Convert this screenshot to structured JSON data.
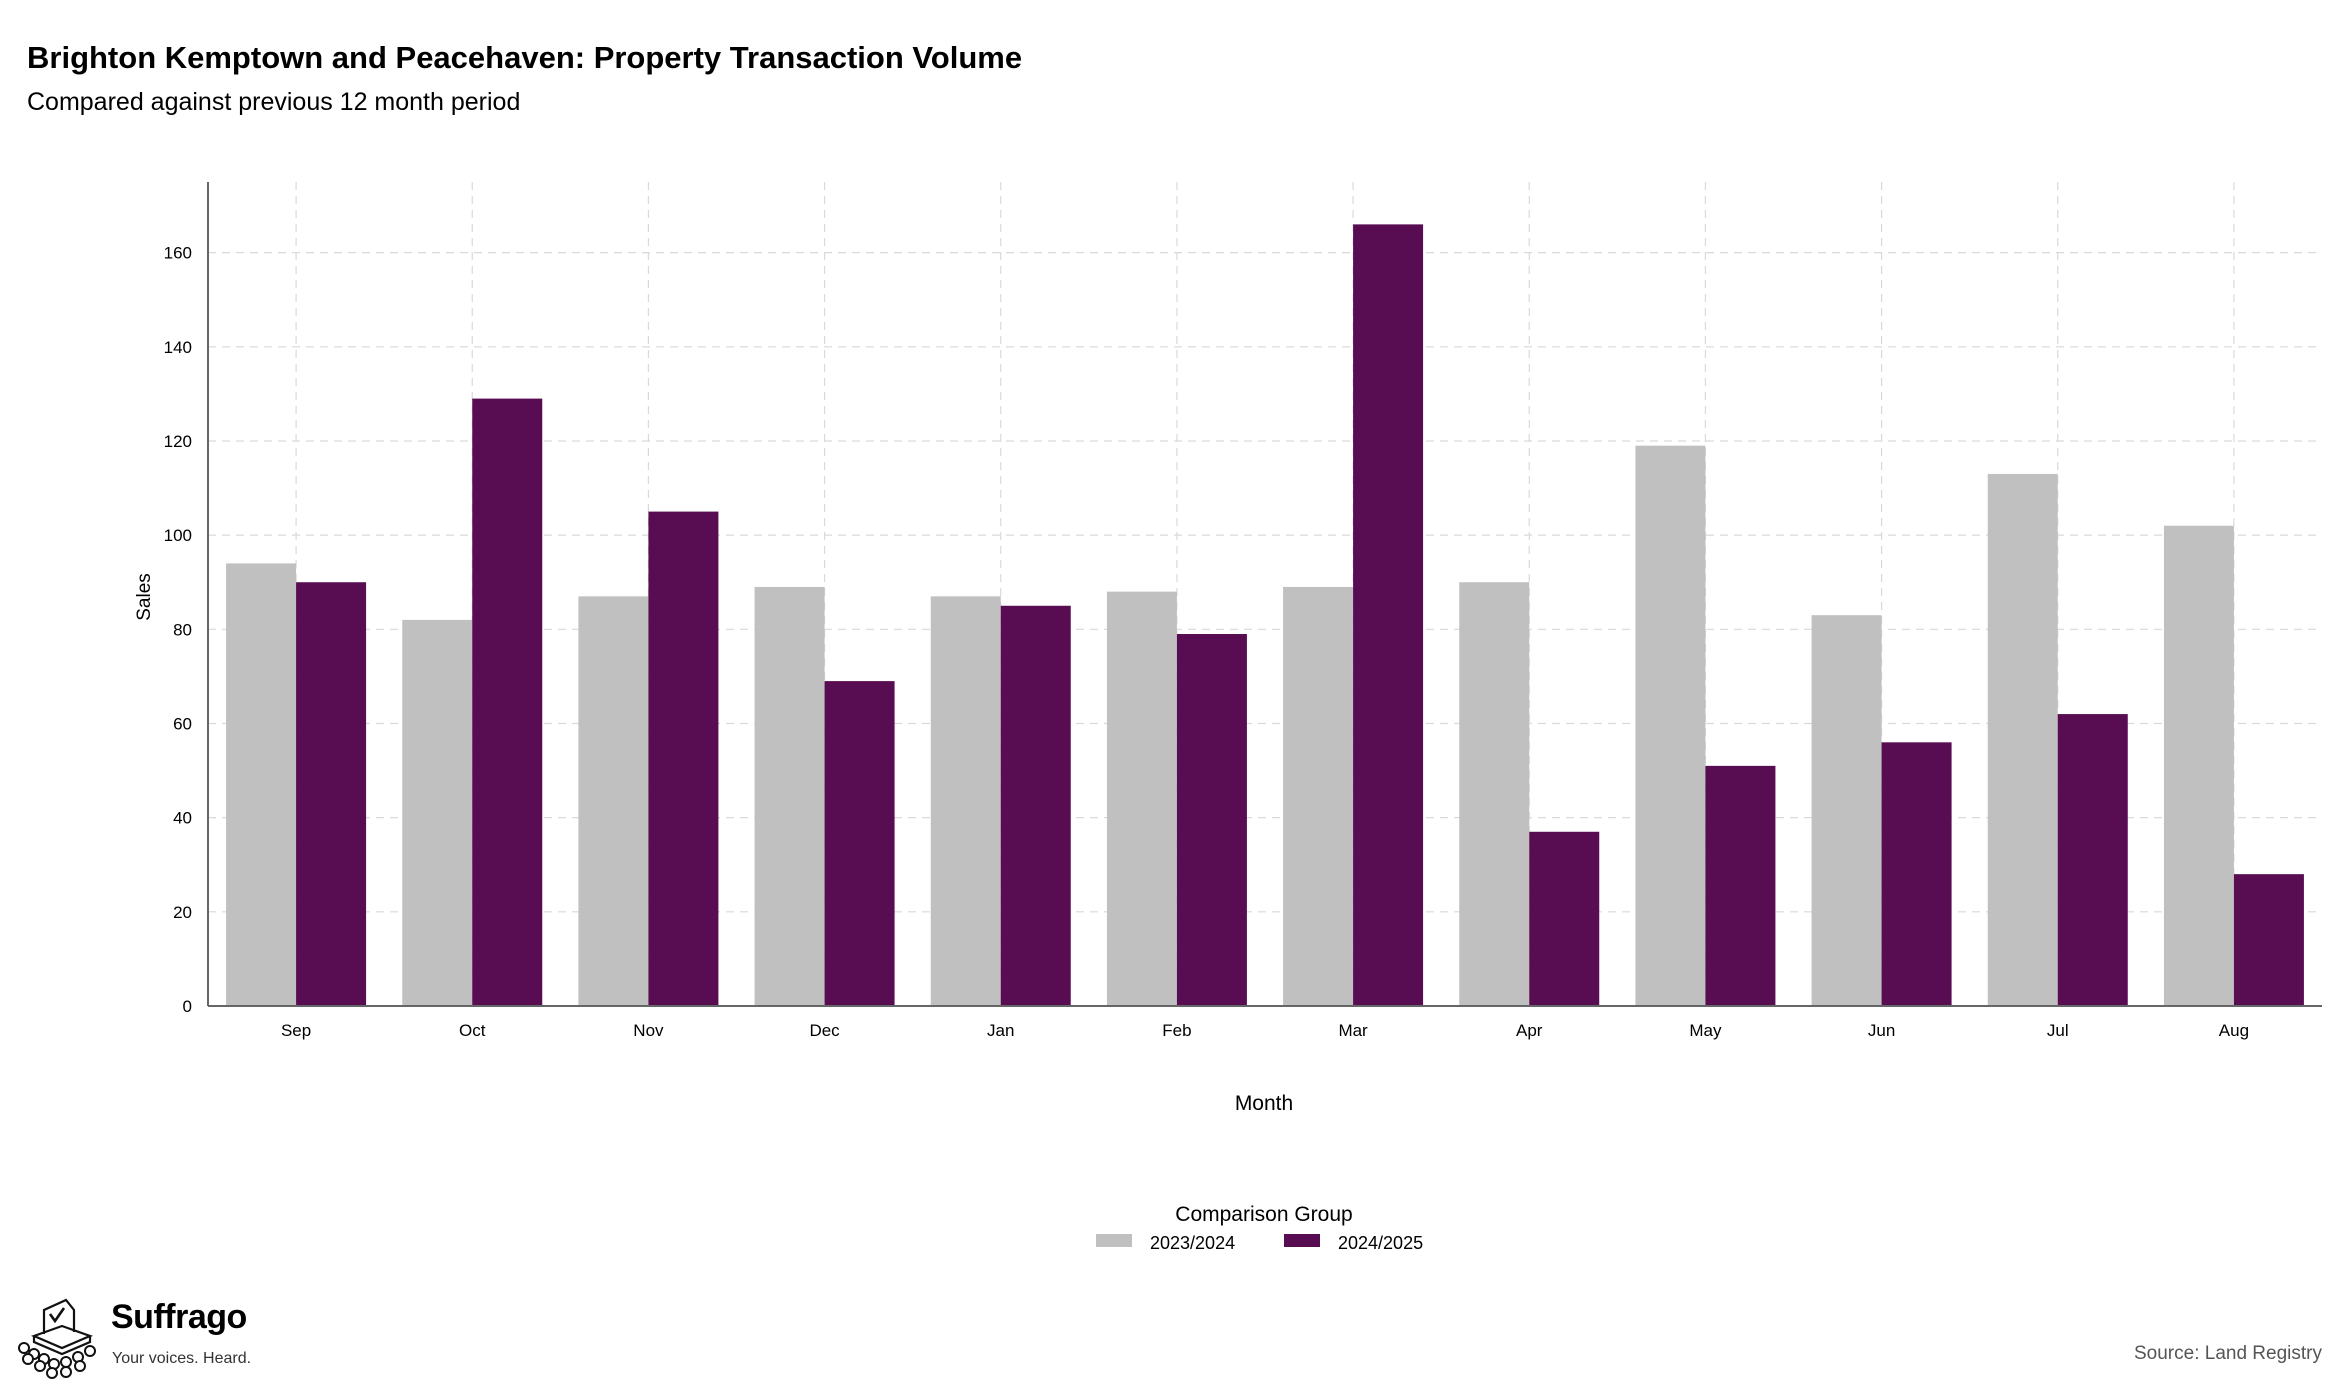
{
  "page": {
    "title": "Brighton Kemptown and Peacehaven: Property Transaction Volume",
    "subtitle": "Compared against previous 12 month period",
    "source": "Source: Land Registry"
  },
  "brand": {
    "name": "Suffrago",
    "tagline": "Your voices. Heard.",
    "icon": "ballot-box-icon"
  },
  "chart_data": {
    "type": "bar",
    "categories": [
      "Sep",
      "Oct",
      "Nov",
      "Dec",
      "Jan",
      "Feb",
      "Mar",
      "Apr",
      "May",
      "Jun",
      "Jul",
      "Aug"
    ],
    "series": [
      {
        "name": "2023/2024",
        "color": "#c0c0c0",
        "values": [
          94,
          82,
          87,
          89,
          87,
          88,
          89,
          90,
          119,
          83,
          113,
          102
        ]
      },
      {
        "name": "2024/2025",
        "color": "#580c52",
        "values": [
          90,
          129,
          105,
          69,
          85,
          79,
          166,
          37,
          51,
          56,
          62,
          28
        ]
      }
    ],
    "xlabel": "Month",
    "ylabel": "Sales",
    "ylim": [
      0,
      175
    ],
    "yticks": [
      0,
      20,
      40,
      60,
      80,
      100,
      120,
      140,
      160
    ],
    "grid": true,
    "legend": {
      "title": "Comparison Group",
      "position": "bottom"
    }
  }
}
